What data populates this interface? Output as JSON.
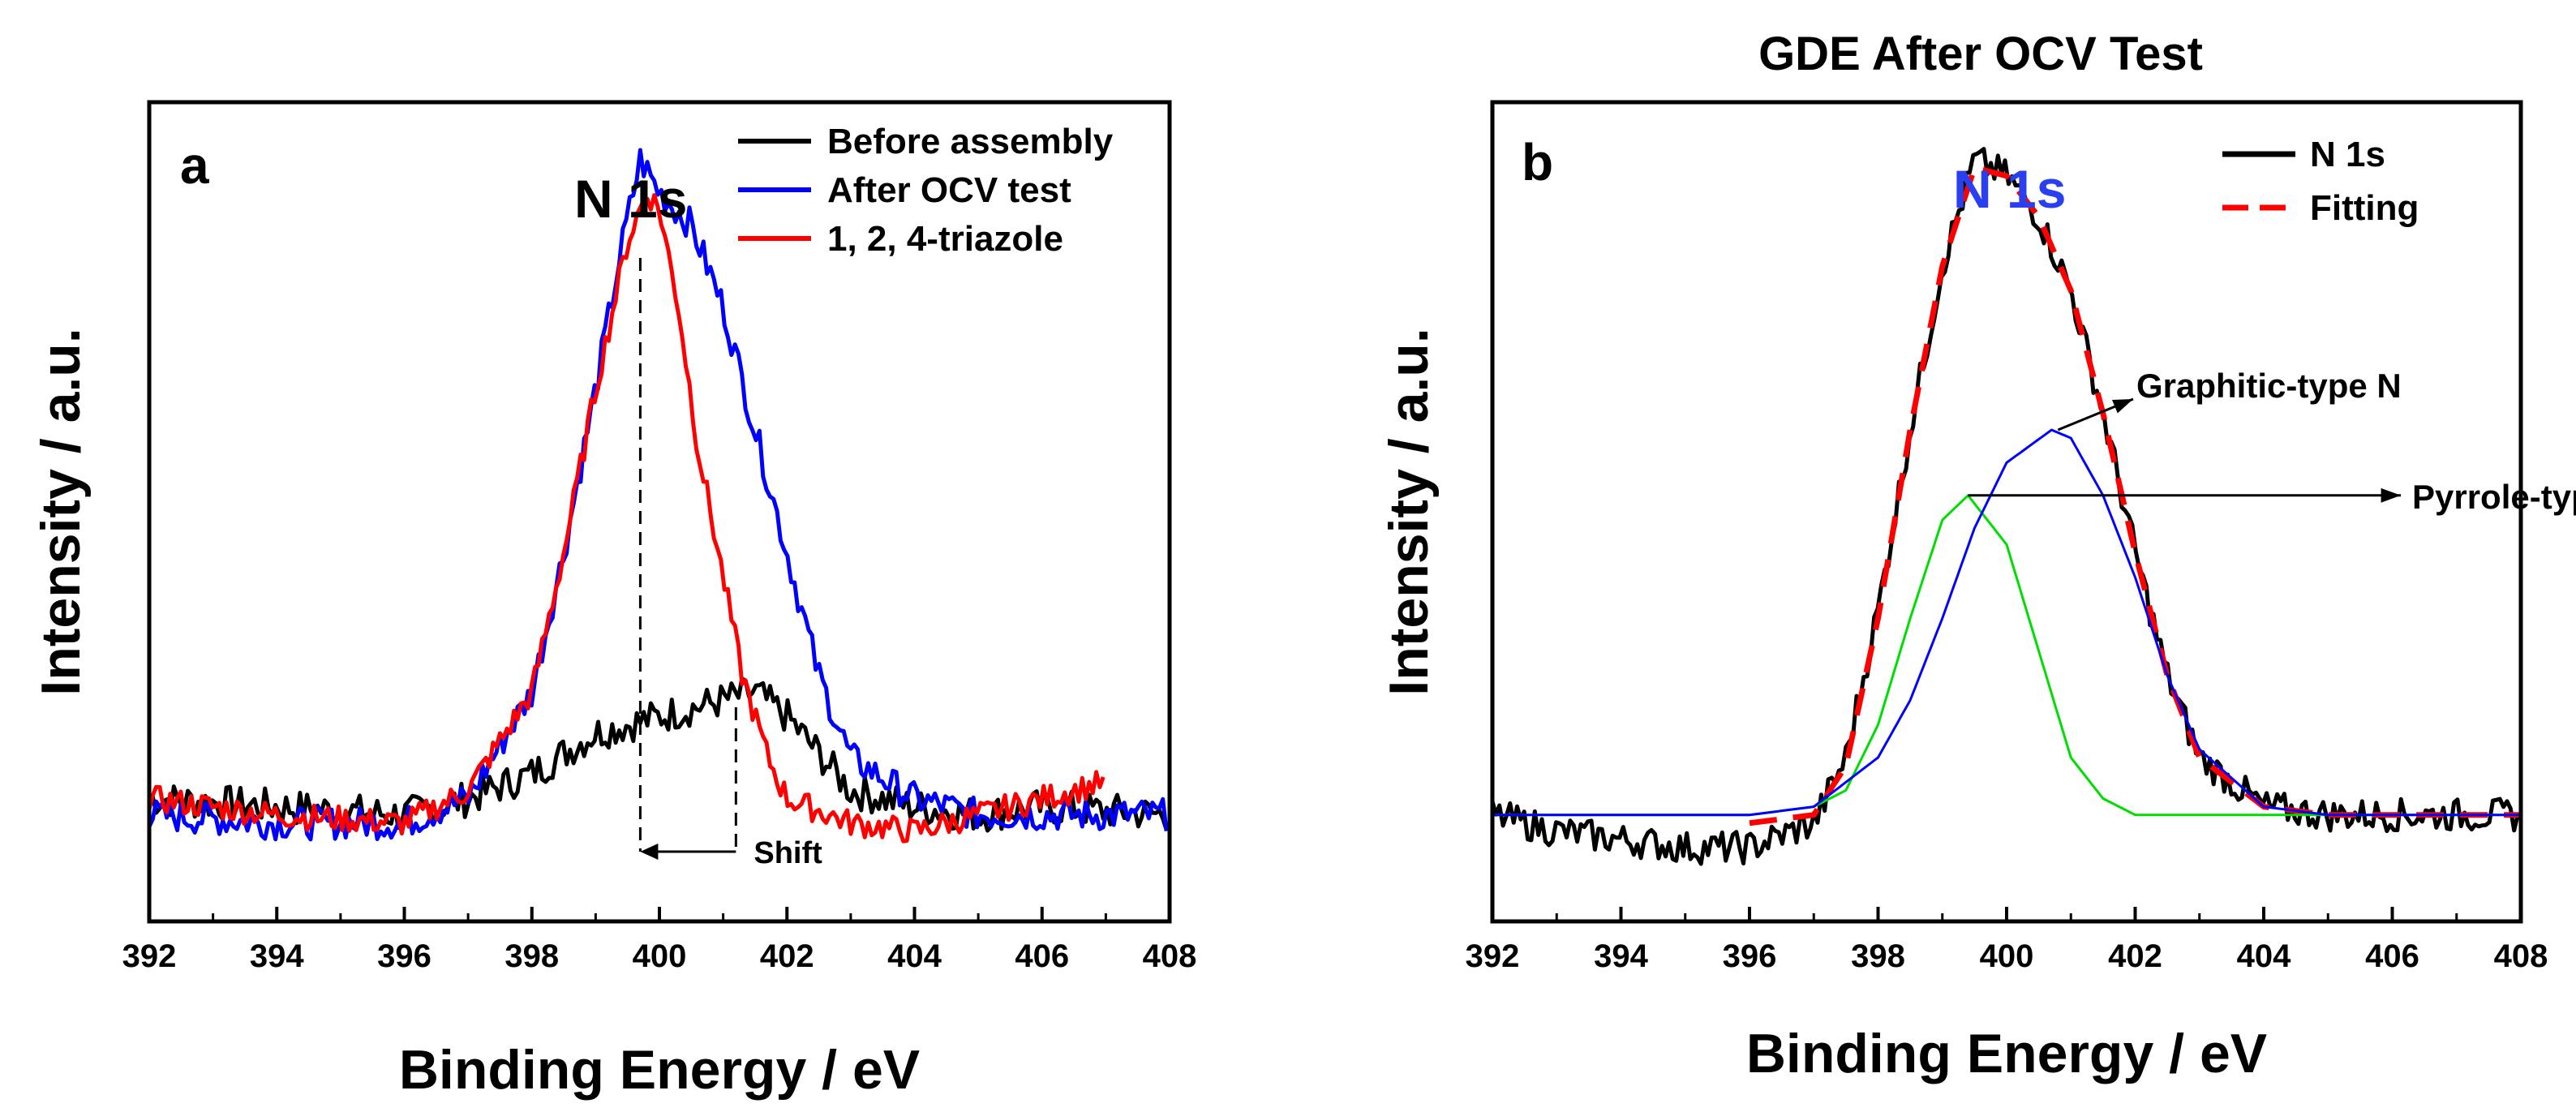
{
  "chart_data": [
    {
      "panel": "a",
      "type": "line",
      "title": "",
      "xlabel": "Binding Energy / eV",
      "ylabel": "Intensity / a.u.",
      "xlim": [
        392,
        408
      ],
      "ylim": [
        0,
        1
      ],
      "xticks": [
        "392",
        "394",
        "396",
        "398",
        "400",
        "402",
        "404",
        "406",
        "408"
      ],
      "peak_label": "N 1s",
      "series": [
        {
          "name": "Before assembly",
          "color": "#000000",
          "x": [
            392,
            394,
            396,
            397,
            398,
            399,
            400,
            401,
            401.5,
            402,
            403,
            404,
            405,
            406,
            408
          ],
          "y": [
            0.15,
            0.14,
            0.13,
            0.15,
            0.18,
            0.23,
            0.25,
            0.27,
            0.28,
            0.25,
            0.16,
            0.14,
            0.13,
            0.14,
            0.13
          ]
        },
        {
          "name": "After OCV test",
          "color": "#0000ff",
          "x": [
            392,
            394,
            396,
            397,
            398,
            398.5,
            399,
            399.4,
            399.7,
            400,
            400.5,
            401,
            401.5,
            402,
            402.5,
            403,
            404,
            405,
            406,
            408
          ],
          "y": [
            0.13,
            0.12,
            0.12,
            0.15,
            0.28,
            0.45,
            0.65,
            0.82,
            0.93,
            0.89,
            0.85,
            0.75,
            0.6,
            0.45,
            0.3,
            0.2,
            0.15,
            0.13,
            0.13,
            0.13
          ]
        },
        {
          "name": "1, 2, 4-triazole",
          "color": "#ff0000",
          "x": [
            392,
            394,
            396,
            397,
            398,
            398.5,
            399,
            399.5,
            399.8,
            400,
            400.3,
            400.6,
            401,
            401.3,
            401.7,
            402,
            403,
            404,
            405,
            406,
            407
          ],
          "y": [
            0.15,
            0.13,
            0.12,
            0.16,
            0.28,
            0.45,
            0.65,
            0.83,
            0.89,
            0.87,
            0.75,
            0.58,
            0.42,
            0.3,
            0.2,
            0.15,
            0.12,
            0.11,
            0.13,
            0.15,
            0.17
          ]
        }
      ],
      "annotations": {
        "shift_text": "Shift",
        "shift_from": 401.2,
        "shift_to": 399.7
      }
    },
    {
      "panel": "b",
      "type": "line",
      "title": "GDE After OCV Test",
      "xlabel": "Binding Energy / eV",
      "ylabel": "Intensity / a.u.",
      "xlim": [
        392,
        408
      ],
      "ylim": [
        0,
        1
      ],
      "xticks": [
        "392",
        "394",
        "396",
        "398",
        "400",
        "402",
        "404",
        "406",
        "408"
      ],
      "peak_label": "N 1s",
      "series": [
        {
          "name": "N 1s",
          "color": "#000000",
          "style": "solid",
          "x": [
            392,
            393,
            394,
            395,
            396,
            397,
            397.5,
            398,
            398.5,
            399,
            399.5,
            400,
            400.5,
            401,
            401.5,
            402,
            402.5,
            403,
            404,
            405,
            406,
            407,
            408
          ],
          "y": [
            0.13,
            0.11,
            0.1,
            0.09,
            0.09,
            0.12,
            0.2,
            0.38,
            0.6,
            0.8,
            0.93,
            0.91,
            0.86,
            0.77,
            0.62,
            0.45,
            0.3,
            0.2,
            0.14,
            0.13,
            0.13,
            0.13,
            0.13
          ]
        },
        {
          "name": "Fitting",
          "color": "#ff0000",
          "style": "dashed",
          "x": [
            396,
            397,
            397.5,
            398,
            398.5,
            399,
            399.5,
            400,
            400.5,
            401,
            401.5,
            402,
            402.5,
            403,
            404,
            405,
            406,
            408
          ],
          "y": [
            0.12,
            0.13,
            0.19,
            0.37,
            0.6,
            0.8,
            0.92,
            0.91,
            0.86,
            0.77,
            0.62,
            0.45,
            0.3,
            0.2,
            0.14,
            0.13,
            0.13,
            0.13
          ]
        },
        {
          "name": "Pyrrole-type N",
          "color": "#00dd00",
          "style": "solid",
          "x": [
            392,
            396,
            397,
            397.5,
            398,
            398.5,
            399,
            399.4,
            400,
            400.5,
            401,
            401.5,
            402,
            403,
            408
          ],
          "y": [
            0.13,
            0.13,
            0.14,
            0.16,
            0.24,
            0.37,
            0.49,
            0.52,
            0.46,
            0.33,
            0.2,
            0.15,
            0.13,
            0.13,
            0.13
          ]
        },
        {
          "name": "Graphitic-type N",
          "color": "#0000ff",
          "style": "solid",
          "x": [
            392,
            396,
            397,
            398,
            398.5,
            399,
            399.5,
            400,
            400.7,
            401,
            401.5,
            402,
            402.5,
            403,
            404,
            405,
            408
          ],
          "y": [
            0.13,
            0.13,
            0.14,
            0.2,
            0.27,
            0.37,
            0.48,
            0.56,
            0.6,
            0.59,
            0.52,
            0.42,
            0.3,
            0.21,
            0.14,
            0.13,
            0.13
          ]
        }
      ],
      "annotations": [
        {
          "text": "Graphitic-type N",
          "target_x": 400.8,
          "target_y": 0.6
        },
        {
          "text": "Pyrrole-type N",
          "target_x": 399.4,
          "target_y": 0.52
        }
      ]
    }
  ]
}
